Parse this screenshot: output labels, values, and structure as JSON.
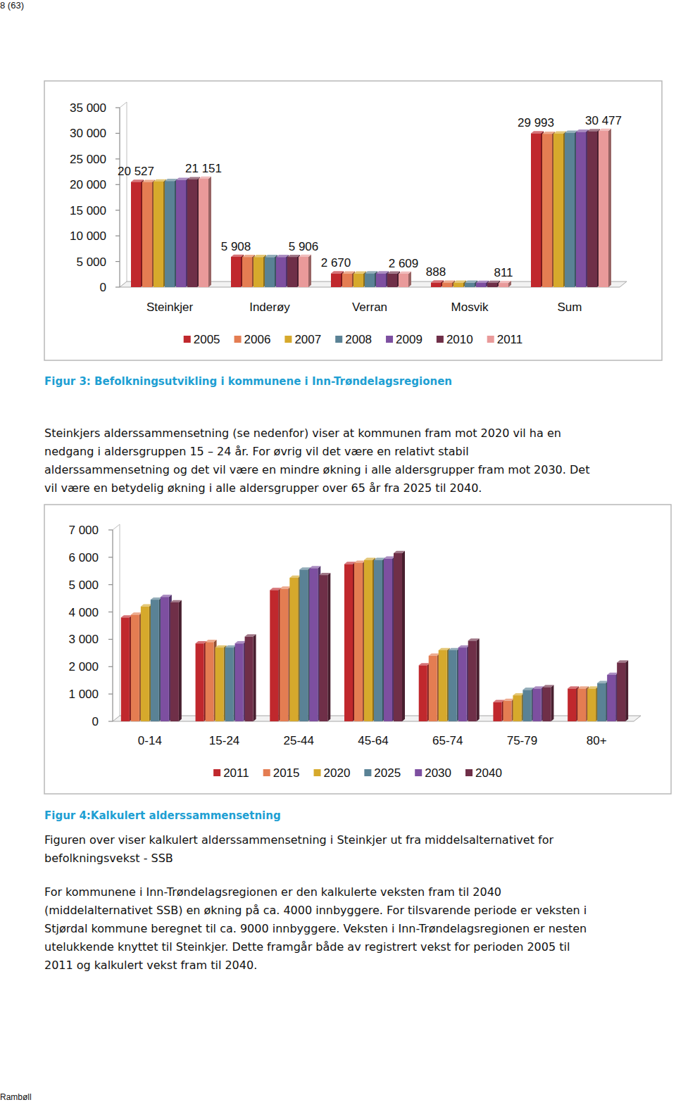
{
  "header": {
    "page_number": "8 (63)"
  },
  "chart_data": [
    {
      "type": "bar",
      "categories": [
        "Steinkjer",
        "Inderøy",
        "Verran",
        "Mosvik",
        "Sum"
      ],
      "series": [
        {
          "name": "2005",
          "color": "#c0282d",
          "values": [
            20527,
            5908,
            2670,
            888,
            29993
          ],
          "data_labels": true,
          "value_labels": [
            "20 527",
            "5 908",
            "2 670",
            "888",
            "29 993"
          ]
        },
        {
          "name": "2006",
          "color": "#e47d52",
          "values": [
            20500,
            5880,
            2650,
            870,
            29900
          ]
        },
        {
          "name": "2007",
          "color": "#d6a92c",
          "values": [
            20600,
            5870,
            2640,
            860,
            29970
          ]
        },
        {
          "name": "2008",
          "color": "#5a8295",
          "values": [
            20700,
            5860,
            2700,
            850,
            30110
          ]
        },
        {
          "name": "2009",
          "color": "#7d4fa0",
          "values": [
            20900,
            5870,
            2680,
            840,
            30290
          ]
        },
        {
          "name": "2010",
          "color": "#6f2f48",
          "values": [
            21050,
            5890,
            2640,
            830,
            30410
          ]
        },
        {
          "name": "2011",
          "color": "#e99a9a",
          "values": [
            21151,
            5906,
            2609,
            811,
            30477
          ],
          "data_labels": true,
          "value_labels": [
            "21 151",
            "5 906",
            "2 609",
            "811",
            "30 477"
          ]
        }
      ],
      "ylim": [
        0,
        35000
      ],
      "yticks": [
        0,
        {
          "value": 5000,
          "label": "5 000"
        },
        {
          "value": 10000,
          "label": "10 000"
        },
        {
          "value": 15000,
          "label": "15 000"
        },
        {
          "value": 20000,
          "label": "20 000"
        },
        {
          "value": 25000,
          "label": "25 000"
        },
        {
          "value": 30000,
          "label": "30 000"
        },
        {
          "value": 35000,
          "label": "35 000"
        }
      ],
      "grid": false,
      "legend": "bottom"
    },
    {
      "type": "bar",
      "categories": [
        "0-14",
        "15-24",
        "25-44",
        "45-64",
        "65-74",
        "75-79",
        "80+"
      ],
      "series": [
        {
          "name": "2011",
          "color": "#c0282d",
          "values": [
            3800,
            2850,
            4800,
            5750,
            2050,
            700,
            1200
          ]
        },
        {
          "name": "2015",
          "color": "#e47d52",
          "values": [
            3900,
            2900,
            4850,
            5800,
            2400,
            750,
            1200
          ]
        },
        {
          "name": "2020",
          "color": "#d6a92c",
          "values": [
            4200,
            2700,
            5250,
            5900,
            2600,
            950,
            1200
          ]
        },
        {
          "name": "2025",
          "color": "#5a8295",
          "values": [
            4450,
            2700,
            5550,
            5900,
            2600,
            1150,
            1400
          ]
        },
        {
          "name": "2030",
          "color": "#7d4fa0",
          "values": [
            4550,
            2850,
            5600,
            5950,
            2700,
            1200,
            1700
          ]
        },
        {
          "name": "2040",
          "color": "#6f2f48",
          "values": [
            4350,
            3100,
            5350,
            6150,
            2950,
            1250,
            2150
          ]
        }
      ],
      "ylim": [
        0,
        7000
      ],
      "yticks": [
        0,
        {
          "value": 1000,
          "label": "1 000"
        },
        {
          "value": 2000,
          "label": "2 000"
        },
        {
          "value": 3000,
          "label": "3 000"
        },
        {
          "value": 4000,
          "label": "4 000"
        },
        {
          "value": 5000,
          "label": "5 000"
        },
        {
          "value": 6000,
          "label": "6 000"
        },
        {
          "value": 7000,
          "label": "7 000"
        }
      ],
      "grid": false,
      "legend": "bottom"
    }
  ],
  "captions": [
    "Figur 3: Befolkningsutvikling i kommunene i Inn-Trøndelagsregionen",
    "Figur 4:Kalkulert alderssammensetning"
  ],
  "paragraphs": [
    [
      "Steinkjers alderssammensetning (se nedenfor) viser at kommunen fram mot 2020 vil ha en",
      "nedgang i aldersgruppen 15 – 24 år. For øvrig vil det være en relativt stabil",
      "alderssammensetning og det vil være en mindre økning i alle aldersgrupper fram mot 2030. Det",
      "vil være en betydelig økning i alle aldersgrupper over 65 år fra 2025 til 2040."
    ],
    [
      "Figuren over viser kalkulert alderssammensetning i Steinkjer ut fra middelsalternativet for",
      "befolkningsvekst - SSB"
    ],
    [
      "For kommunene i Inn-Trøndelagsregionen er den kalkulerte veksten fram til 2040",
      "(middelalternativet SSB) en økning på ca. 4000 innbyggere. For tilsvarende periode er veksten i",
      "Stjørdal kommune beregnet til ca. 9000 innbyggere. Veksten i Inn-Trøndelagsregionen er nesten",
      "utelukkende knyttet til Steinkjer. Dette framgår både av registrert vekst for perioden 2005 til",
      "2011 og kalkulert vekst fram til 2040."
    ]
  ],
  "footer": "Rambøll"
}
